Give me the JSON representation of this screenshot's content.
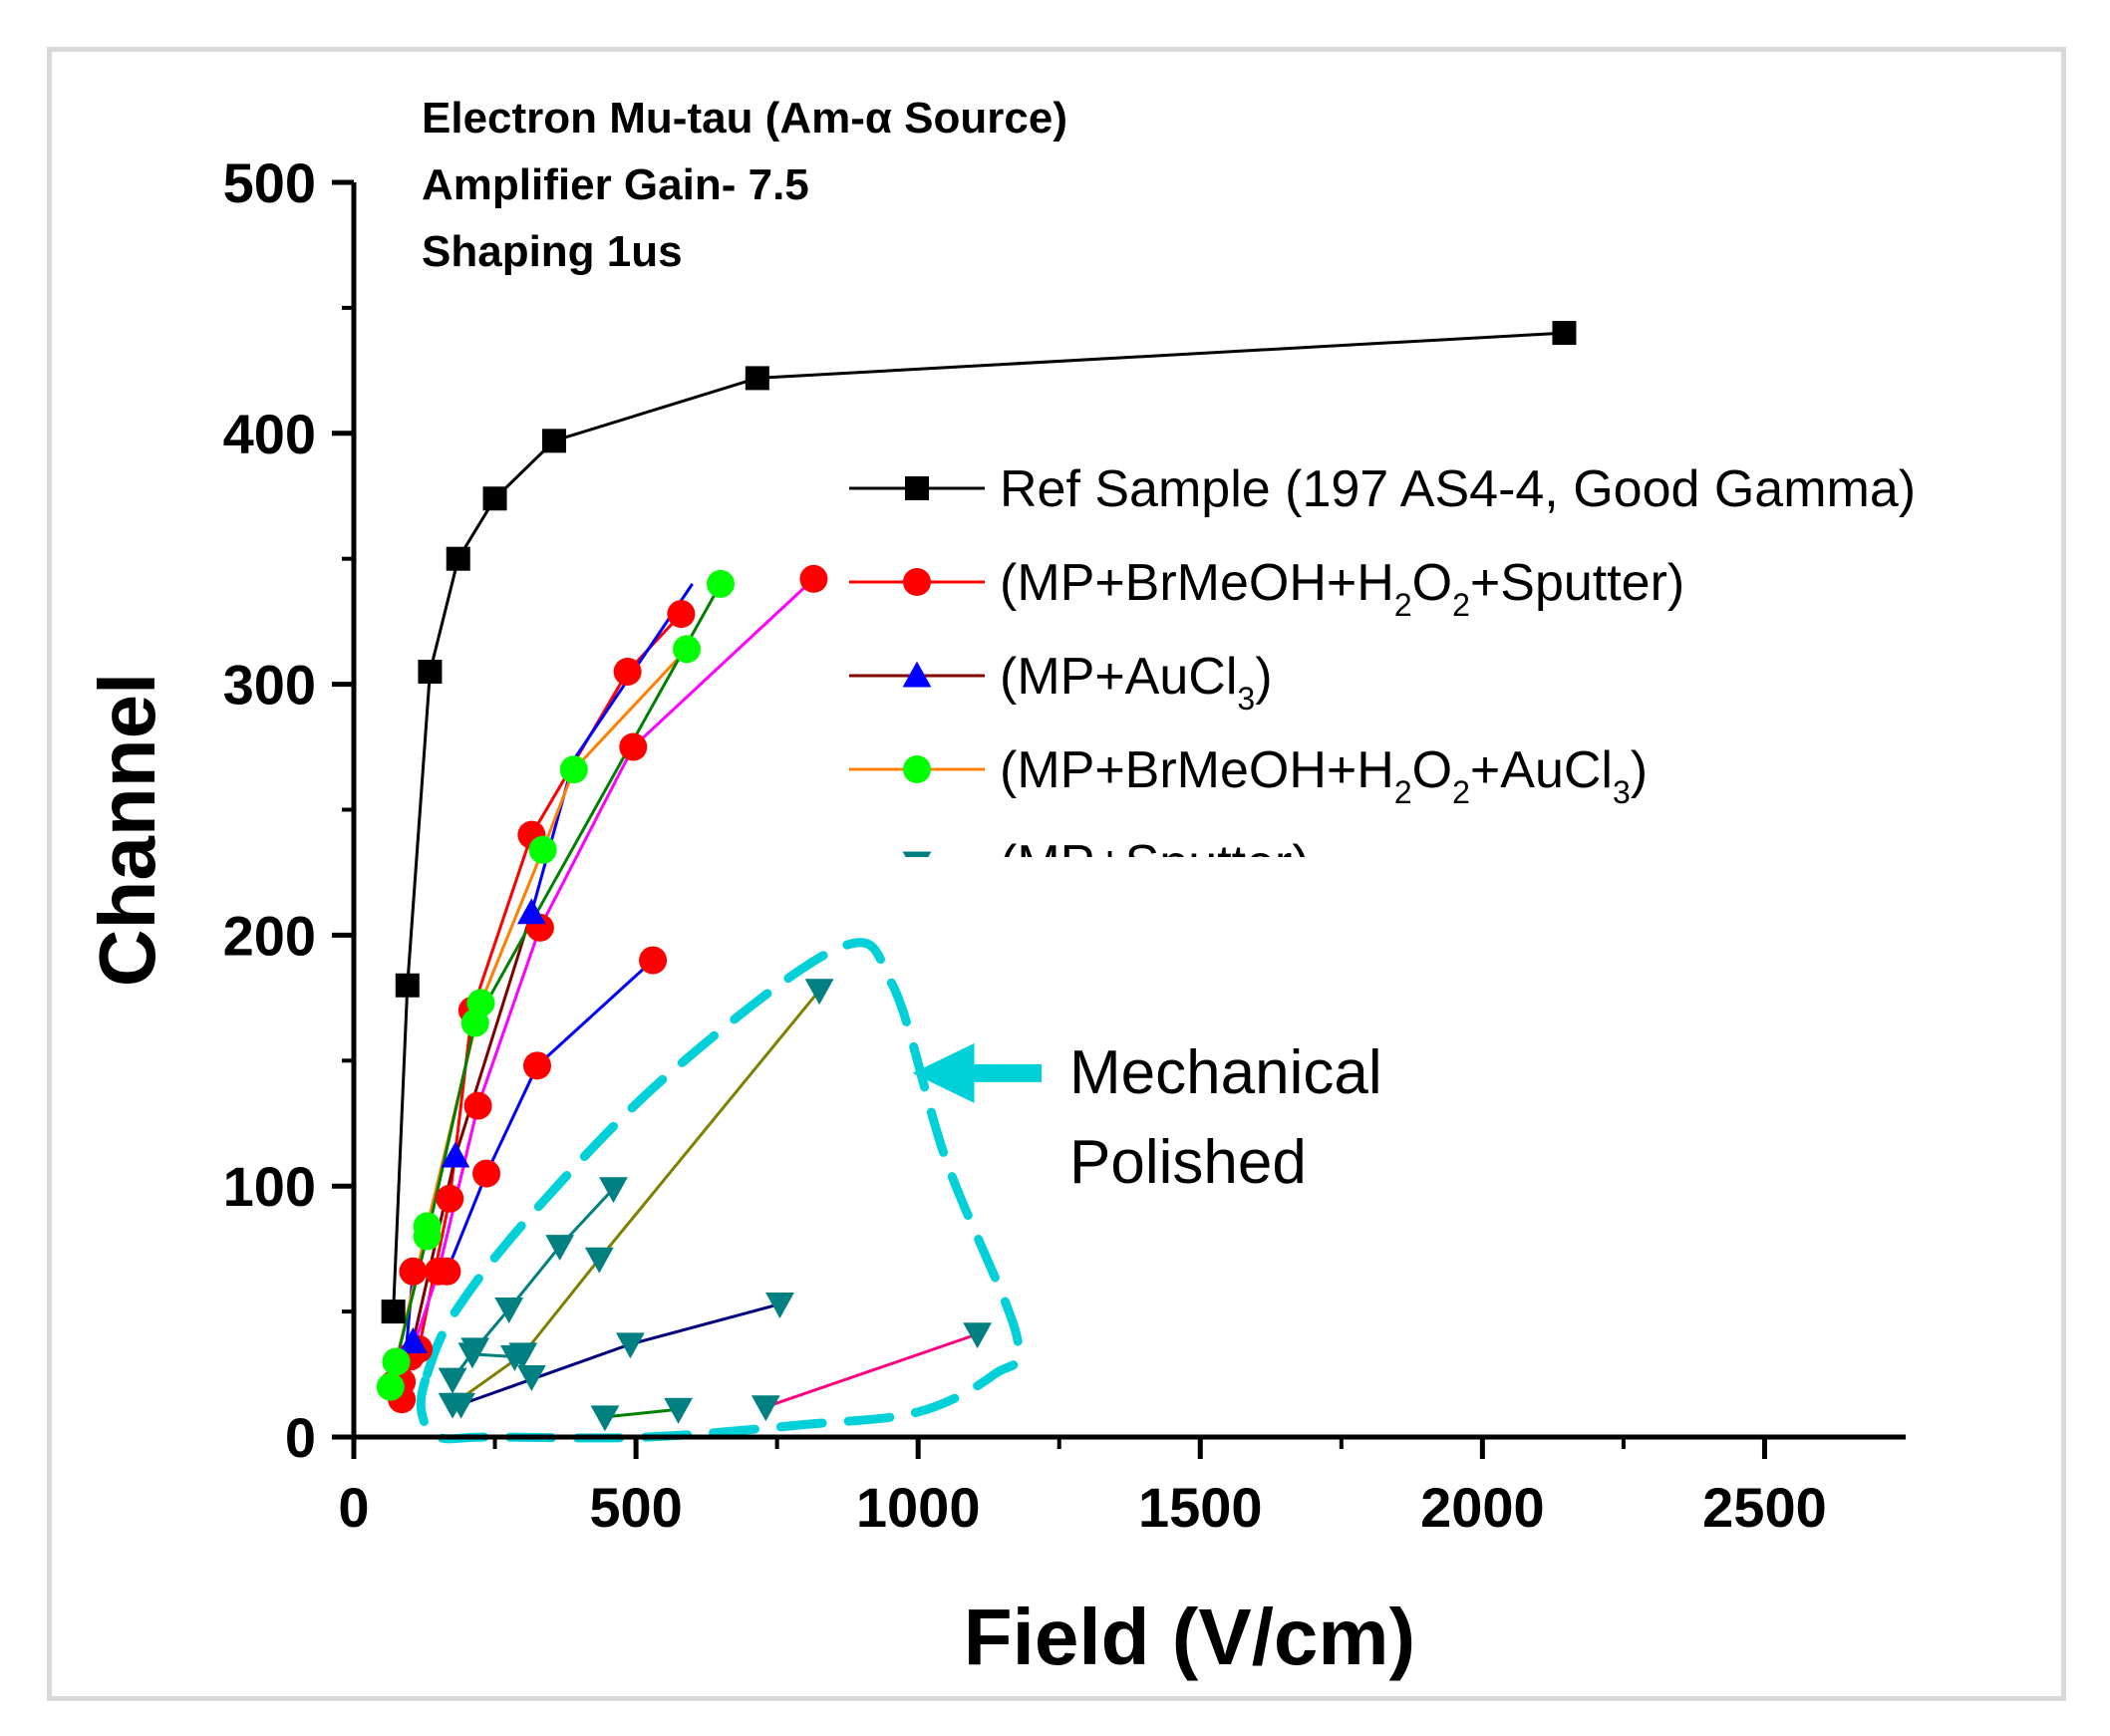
{
  "chart_data": {
    "type": "scatter",
    "xlabel": "Field (V/cm)",
    "ylabel": "Channel",
    "xlim": [
      0,
      2750
    ],
    "ylim": [
      0,
      500
    ],
    "xticks": [
      "0",
      "500",
      "1000",
      "1500",
      "2000",
      "2500"
    ],
    "xtick_values": [
      0,
      500,
      1000,
      1500,
      2000,
      2500
    ],
    "yticks": [
      "0",
      "100",
      "200",
      "300",
      "400",
      "500"
    ],
    "ytick_values": [
      0,
      100,
      200,
      300,
      400,
      500
    ],
    "notes": [
      "Electron Mu-tau (Am-α Source)",
      "Amplifier Gain- 7.5",
      "Shaping 1us"
    ],
    "legend": [
      {
        "marker": "square",
        "color": "#000000",
        "line": "#000000",
        "label": "Ref Sample (197 AS4-4, Good Gamma)",
        "label_parts": [
          {
            "t": "Ref Sample (197 AS4-4, Good Gamma)"
          }
        ]
      },
      {
        "marker": "circle",
        "color": "#ff0000",
        "line": "#ff0000",
        "label": "(MP+BrMeOH+H2O2+Sputter)",
        "label_parts": [
          {
            "t": "(MP+BrMeOH+H"
          },
          {
            "t": "2",
            "sub": true
          },
          {
            "t": "O"
          },
          {
            "t": "2",
            "sub": true
          },
          {
            "t": "+Sputter)"
          }
        ]
      },
      {
        "marker": "triangle-up",
        "color": "#0000ff",
        "line": "#800000",
        "label": "(MP+AuCl3)",
        "label_parts": [
          {
            "t": "(MP+AuCl"
          },
          {
            "t": "3",
            "sub": true
          },
          {
            "t": ")"
          }
        ]
      },
      {
        "marker": "circle",
        "color": "#00ff00",
        "line": "#ff8000",
        "label": "(MP+BrMeOH+H2O2+AuCl3)",
        "label_parts": [
          {
            "t": "(MP+BrMeOH+H"
          },
          {
            "t": "2",
            "sub": true
          },
          {
            "t": "O"
          },
          {
            "t": "2",
            "sub": true
          },
          {
            "t": "+AuCl"
          },
          {
            "t": "3",
            "sub": true
          },
          {
            "t": ")"
          }
        ]
      },
      {
        "marker": "triangle-down",
        "color": "#008080",
        "line": "#808000",
        "label": "(MP+Sputter)",
        "label_parts": [
          {
            "t": "(MP+Sputter)"
          }
        ]
      }
    ],
    "series": [
      {
        "name": "Ref Sample (197 AS4-4, Good Gamma)",
        "marker": "square",
        "color": "#000000",
        "line": "#000000",
        "x": [
          70,
          95,
          135,
          185,
          250,
          355,
          715,
          2145
        ],
        "y": [
          50,
          180,
          305,
          350,
          374,
          397,
          422,
          440
        ]
      },
      {
        "name": "(MP+BrMeOH+H2O2+Sputter) a",
        "marker": "circle",
        "color": "#ff0000",
        "line": "#ff0000",
        "x": [
          85,
          115,
          170,
          210,
          315,
          485,
          580
        ],
        "y": [
          22,
          35,
          95,
          170,
          240,
          305,
          328
        ]
      },
      {
        "name": "(MP+BrMeOH+H2O2+Sputter) b",
        "marker": "circle",
        "color": "#ff0000",
        "line": "#ff00ff",
        "x": [
          70,
          100,
          150,
          220,
          330,
          495,
          815
        ],
        "y": [
          21,
          32,
          66,
          132,
          203,
          275,
          342
        ]
      },
      {
        "name": "(MP+BrMeOH+H2O2+Sputter) c",
        "marker": "circle",
        "color": "#ff0000",
        "line": "#0000ff",
        "x": [
          85,
          105,
          165,
          235,
          325,
          530
        ],
        "y": [
          15,
          66,
          66,
          105,
          148,
          190
        ]
      },
      {
        "name": "(MP+AuCl3)",
        "marker": "triangle-up",
        "color": "#0000ff",
        "line": "#800000",
        "x": [
          105,
          180,
          315
        ],
        "y": [
          38,
          112,
          209
        ]
      },
      {
        "name": "(MP+AuCl3) b",
        "marker": "none",
        "color": "#0000ff",
        "line": "#0000ff",
        "x": [
          315,
          390,
          600
        ],
        "y": [
          209,
          270,
          340
        ]
      },
      {
        "name": "(MP+BrMeOH+H2O2+AuCl3) a",
        "marker": "circle",
        "color": "#00ff00",
        "line": "#ff8000",
        "x": [
          65,
          130,
          225,
          335,
          390,
          590
        ],
        "y": [
          20,
          84,
          173,
          234,
          266,
          314
        ]
      },
      {
        "name": "(MP+BrMeOH+H2O2+AuCl3) b",
        "marker": "circle",
        "color": "#00ff00",
        "line": "#008000",
        "x": [
          75,
          130,
          215,
          650
        ],
        "y": [
          30,
          80,
          165,
          340
        ]
      },
      {
        "name": "(MP+Sputter) a",
        "marker": "triangle-down",
        "color": "#008080",
        "line": "#808000",
        "x": [
          175,
          300,
          435,
          825
        ],
        "y": [
          13,
          33,
          71,
          178
        ]
      },
      {
        "name": "(MP+Sputter) b",
        "marker": "triangle-down",
        "color": "#008080",
        "line": "#008080",
        "x": [
          175,
          215,
          275,
          365,
          460
        ],
        "y": [
          23,
          35,
          51,
          76,
          99
        ]
      },
      {
        "name": "(MP+Sputter) c",
        "marker": "triangle-down",
        "color": "#008080",
        "line": "#000080",
        "x": [
          190,
          490,
          755
        ],
        "y": [
          13,
          37,
          53
        ]
      },
      {
        "name": "(MP+Sputter) d",
        "marker": "triangle-down",
        "color": "#008080",
        "line": "#008000",
        "x": [
          445,
          575
        ],
        "y": [
          8,
          11
        ]
      },
      {
        "name": "(MP+Sputter) e",
        "marker": "triangle-down",
        "color": "#008080",
        "line": "#ff0080",
        "x": [
          730,
          1105
        ],
        "y": [
          12,
          41
        ]
      },
      {
        "name": "(MP+Sputter) f",
        "marker": "triangle-down",
        "color": "#008080",
        "line": "#008080",
        "x": [
          210,
          285,
          315
        ],
        "y": [
          33,
          32,
          24
        ]
      }
    ],
    "annotation": {
      "text_lines": [
        "Mechanical",
        "Polished"
      ],
      "color": "#00d0d8",
      "region_x": [
        130,
        180,
        320,
        560,
        860,
        955,
        1050,
        1175,
        1135,
        1000,
        800,
        520,
        240,
        150,
        120
      ],
      "region_y": [
        25,
        50,
        90,
        145,
        195,
        180,
        110,
        40,
        25,
        10,
        5,
        0,
        0,
        0,
        10
      ],
      "arrow_tip": [
        990,
        145
      ]
    }
  }
}
